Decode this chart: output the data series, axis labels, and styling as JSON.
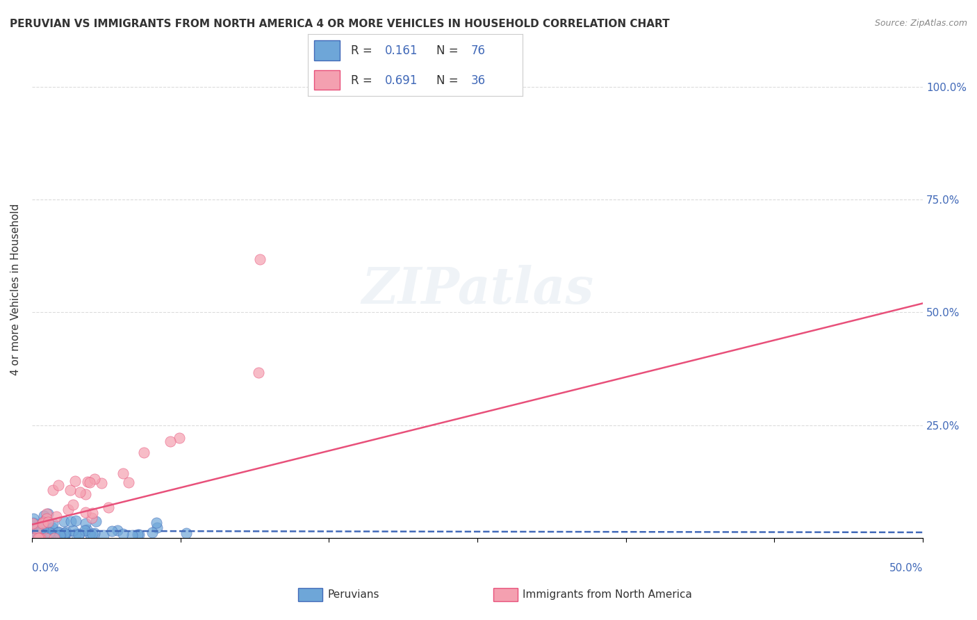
{
  "title": "PERUVIAN VS IMMIGRANTS FROM NORTH AMERICA 4 OR MORE VEHICLES IN HOUSEHOLD CORRELATION CHART",
  "source": "Source: ZipAtlas.com",
  "ylabel": "4 or more Vehicles in Household",
  "series1_label": "Peruvians",
  "series2_label": "Immigrants from North America",
  "series1_R": "0.161",
  "series1_N": "76",
  "series2_R": "0.691",
  "series2_N": "36",
  "series1_color": "#6ea6d8",
  "series2_color": "#f4a0b0",
  "series1_line_color": "#4169b8",
  "series2_line_color": "#e8507a",
  "background_color": "#ffffff",
  "grid_color": "#cccccc",
  "x_range": [
    0.0,
    0.5
  ],
  "y_range": [
    0.0,
    1.1
  ]
}
